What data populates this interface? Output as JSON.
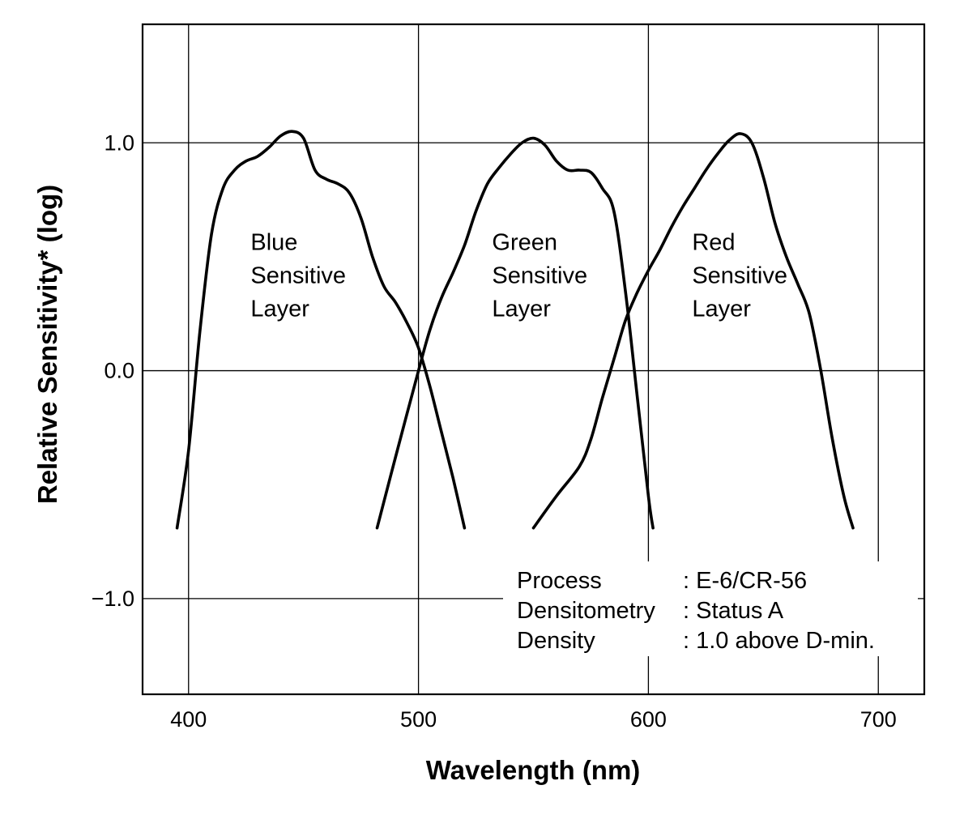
{
  "chart_data": {
    "type": "line",
    "title": "",
    "xlabel": "Wavelength (nm)",
    "ylabel": "Relative Sensitivity* (log)",
    "xlim": [
      380,
      720
    ],
    "ylim": [
      -1.42,
      1.52
    ],
    "x_ticks": [
      {
        "value": 400,
        "label": "400"
      },
      {
        "value": 500,
        "label": "500"
      },
      {
        "value": 600,
        "label": "600"
      },
      {
        "value": 700,
        "label": "700"
      }
    ],
    "y_ticks": [
      {
        "value": 1.0,
        "label": "1.0"
      },
      {
        "value": 0.0,
        "label": "0.0"
      },
      {
        "value": -1.0,
        "label": "−1.0"
      }
    ],
    "grid": true,
    "series": [
      {
        "name": "Blue Sensitive Layer",
        "label_lines": [
          "Blue",
          "Sensitive",
          "Layer"
        ],
        "label_anchor": [
          427,
          0.53
        ],
        "x": [
          395,
          400,
          405,
          410,
          415,
          420,
          425,
          430,
          435,
          440,
          445,
          450,
          455,
          460,
          465,
          470,
          475,
          480,
          485,
          490,
          495,
          500,
          505,
          510,
          515,
          520
        ],
        "y": [
          -0.69,
          -0.35,
          0.18,
          0.6,
          0.8,
          0.88,
          0.92,
          0.94,
          0.98,
          1.03,
          1.05,
          1.02,
          0.88,
          0.84,
          0.82,
          0.78,
          0.67,
          0.5,
          0.37,
          0.3,
          0.21,
          0.1,
          -0.07,
          -0.27,
          -0.47,
          -0.69
        ]
      },
      {
        "name": "Green Sensitive Layer",
        "label_lines": [
          "Green",
          "Sensitive",
          "Layer"
        ],
        "label_anchor": [
          532,
          0.53
        ],
        "x": [
          482,
          490,
          500,
          505,
          510,
          515,
          520,
          525,
          530,
          535,
          540,
          545,
          550,
          555,
          560,
          565,
          570,
          575,
          580,
          585,
          590,
          595,
          600,
          602
        ],
        "y": [
          -0.69,
          -0.38,
          0.0,
          0.18,
          0.32,
          0.43,
          0.55,
          0.7,
          0.82,
          0.89,
          0.95,
          1.0,
          1.02,
          0.99,
          0.92,
          0.88,
          0.88,
          0.87,
          0.8,
          0.7,
          0.35,
          -0.1,
          -0.55,
          -0.69
        ]
      },
      {
        "name": "Red Sensitive Layer",
        "label_lines": [
          "Red",
          "Sensitive",
          "Layer"
        ],
        "label_anchor": [
          619,
          0.53
        ],
        "x": [
          550,
          560,
          570,
          575,
          580,
          585,
          590,
          595,
          600,
          605,
          610,
          615,
          620,
          625,
          630,
          635,
          640,
          645,
          650,
          655,
          660,
          665,
          670,
          675,
          680,
          685,
          689
        ],
        "y": [
          -0.69,
          -0.55,
          -0.42,
          -0.3,
          -0.12,
          0.05,
          0.22,
          0.34,
          0.44,
          0.53,
          0.63,
          0.72,
          0.8,
          0.88,
          0.95,
          1.01,
          1.04,
          1.0,
          0.85,
          0.65,
          0.5,
          0.38,
          0.25,
          0.0,
          -0.3,
          -0.55,
          -0.69
        ]
      }
    ],
    "annotation": {
      "rows": [
        {
          "key": "Process",
          "value": ": E-6/CR-56"
        },
        {
          "key": "Densitometry",
          "value": ": Status A"
        },
        {
          "key": "Density",
          "value": ": 1.0 above D-min."
        }
      ]
    }
  }
}
